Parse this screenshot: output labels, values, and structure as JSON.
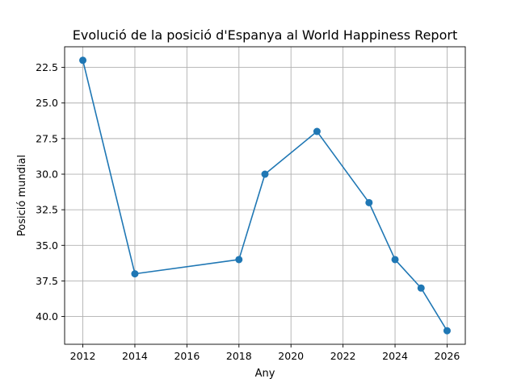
{
  "chart_data": {
    "type": "line",
    "title": "Evolució de la posició d'Espanya al World Happiness Report",
    "xlabel": "Any",
    "ylabel": "Posició mundial",
    "x": [
      2012,
      2014,
      2018,
      2019,
      2021,
      2023,
      2024,
      2025,
      2026
    ],
    "series": [
      {
        "values": [
          22,
          37,
          36,
          30,
          27,
          32,
          36,
          38,
          41
        ],
        "color": "#1f77b4",
        "marker": "circle"
      }
    ],
    "xlim": [
      2011.3,
      2026.7
    ],
    "ylim": [
      41.95,
      21.05
    ],
    "y_inverted": true,
    "xticks": [
      2012,
      2014,
      2016,
      2018,
      2020,
      2022,
      2024,
      2026
    ],
    "xtick_labels": [
      "2012",
      "2014",
      "2016",
      "2018",
      "2020",
      "2022",
      "2024",
      "2026"
    ],
    "yticks": [
      22.5,
      25.0,
      27.5,
      30.0,
      32.5,
      35.0,
      37.5,
      40.0
    ],
    "ytick_labels": [
      "22.5",
      "25.0",
      "27.5",
      "30.0",
      "32.5",
      "35.0",
      "37.5",
      "40.0"
    ],
    "grid": true,
    "legend": "none"
  }
}
